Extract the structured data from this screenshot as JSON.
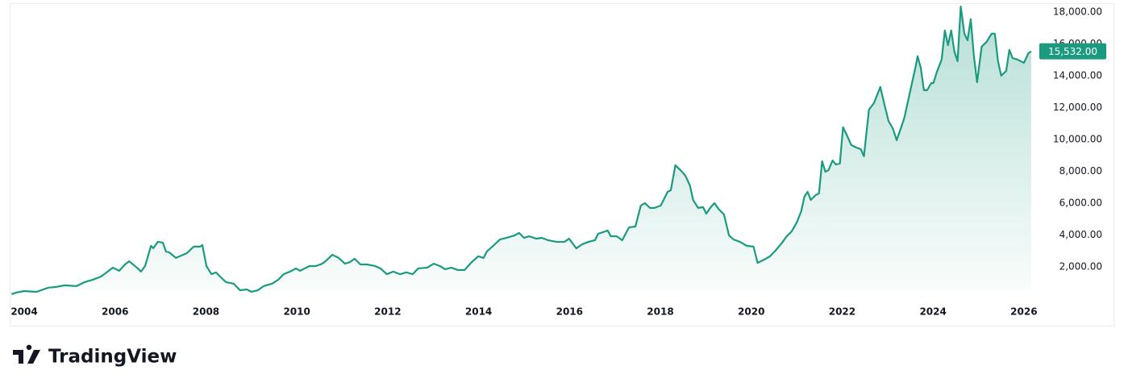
{
  "chart_data": {
    "type": "area",
    "color": "#1a9a7e",
    "grid": false,
    "xlim": [
      2003.68,
      2026.18
    ],
    "xticks": [
      2004,
      2006,
      2008,
      2010,
      2012,
      2014,
      2016,
      2018,
      2020,
      2022,
      2024,
      2026
    ],
    "ylim": [
      530,
      18500
    ],
    "yticks": [
      {
        "value": 2000,
        "label": "2,000.00"
      },
      {
        "value": 4000,
        "label": "4,000.00"
      },
      {
        "value": 6000,
        "label": "6,000.00"
      },
      {
        "value": 8000,
        "label": "8,000.00"
      },
      {
        "value": 10000,
        "label": "10,000.00"
      },
      {
        "value": 12000,
        "label": "12,000.00"
      },
      {
        "value": 14000,
        "label": "14,000.00"
      },
      {
        "value": 16000,
        "label": "16,000.00"
      },
      {
        "value": 18000,
        "label": "18,000.00"
      }
    ],
    "last_price": {
      "value": 15532,
      "label": "15,532.00"
    },
    "x": [
      2003.72,
      2003.82,
      2004.0,
      2004.27,
      2004.53,
      2004.71,
      2004.89,
      2005.15,
      2005.33,
      2005.51,
      2005.69,
      2005.86,
      2005.95,
      2006.09,
      2006.22,
      2006.31,
      2006.48,
      2006.57,
      2006.66,
      2006.79,
      2006.84,
      2006.94,
      2007.05,
      2007.12,
      2007.19,
      2007.34,
      2007.46,
      2007.58,
      2007.73,
      2007.87,
      2007.92,
      2008.01,
      2008.12,
      2008.22,
      2008.31,
      2008.44,
      2008.61,
      2008.75,
      2008.9,
      2009.0,
      2009.14,
      2009.27,
      2009.45,
      2009.59,
      2009.71,
      2009.85,
      2009.98,
      2010.07,
      2010.17,
      2010.28,
      2010.42,
      2010.56,
      2010.65,
      2010.78,
      2010.92,
      2011.06,
      2011.17,
      2011.27,
      2011.4,
      2011.54,
      2011.72,
      2011.84,
      2011.98,
      2012.12,
      2012.27,
      2012.41,
      2012.55,
      2012.67,
      2012.87,
      2013.01,
      2013.15,
      2013.26,
      2013.4,
      2013.54,
      2013.69,
      2013.85,
      2013.99,
      2014.11,
      2014.18,
      2014.32,
      2014.47,
      2014.61,
      2014.79,
      2014.89,
      2015.0,
      2015.11,
      2015.27,
      2015.39,
      2015.53,
      2015.71,
      2015.89,
      2015.99,
      2016.15,
      2016.28,
      2016.42,
      2016.56,
      2016.63,
      2016.74,
      2016.84,
      2016.91,
      2017.04,
      2017.16,
      2017.31,
      2017.45,
      2017.57,
      2017.66,
      2017.77,
      2017.87,
      2018.01,
      2018.16,
      2018.23,
      2018.33,
      2018.46,
      2018.55,
      2018.65,
      2018.72,
      2018.83,
      2018.94,
      2019.01,
      2019.11,
      2019.19,
      2019.29,
      2019.4,
      2019.51,
      2019.61,
      2019.75,
      2019.9,
      2020.05,
      2020.14,
      2020.29,
      2020.41,
      2020.53,
      2020.68,
      2020.78,
      2020.89,
      2021.0,
      2021.1,
      2021.17,
      2021.24,
      2021.31,
      2021.42,
      2021.49,
      2021.56,
      2021.63,
      2021.7,
      2021.79,
      2021.86,
      2021.95,
      2022.02,
      2022.09,
      2022.2,
      2022.31,
      2022.41,
      2022.48,
      2022.59,
      2022.7,
      2022.84,
      2022.95,
      2023.02,
      2023.12,
      2023.2,
      2023.3,
      2023.37,
      2023.51,
      2023.62,
      2023.66,
      2023.73,
      2023.8,
      2023.87,
      2023.96,
      2024.01,
      2024.08,
      2024.19,
      2024.26,
      2024.33,
      2024.4,
      2024.47,
      2024.54,
      2024.61,
      2024.69,
      2024.76,
      2024.83,
      2024.9,
      2024.97,
      2025.07,
      2025.18,
      2025.29,
      2025.36,
      2025.43,
      2025.5,
      2025.61,
      2025.68,
      2025.75,
      2025.86,
      2026.0,
      2026.1,
      2026.16
    ],
    "values": [
      280,
      380,
      480,
      430,
      690,
      740,
      840,
      790,
      1040,
      1190,
      1390,
      1750,
      1950,
      1750,
      2150,
      2350,
      1950,
      1700,
      2050,
      3320,
      3170,
      3570,
      3520,
      2960,
      2910,
      2560,
      2710,
      2860,
      3270,
      3270,
      3370,
      2050,
      1540,
      1650,
      1390,
      1040,
      940,
      530,
      580,
      430,
      530,
      790,
      940,
      1190,
      1540,
      1700,
      1900,
      1750,
      1900,
      2050,
      2050,
      2200,
      2400,
      2760,
      2560,
      2200,
      2300,
      2510,
      2150,
      2150,
      2050,
      1900,
      1540,
      1700,
      1540,
      1650,
      1540,
      1900,
      1950,
      2200,
      2050,
      1850,
      1950,
      1800,
      1800,
      2300,
      2660,
      2560,
      2960,
      3320,
      3720,
      3820,
      3970,
      4130,
      3820,
      3920,
      3770,
      3820,
      3670,
      3570,
      3570,
      3770,
      3160,
      3420,
      3570,
      3670,
      4080,
      4180,
      4280,
      3920,
      3920,
      3670,
      4480,
      4530,
      5850,
      6000,
      5700,
      5700,
      5850,
      6710,
      6810,
      8380,
      8020,
      7720,
      7110,
      6200,
      5700,
      5750,
      5340,
      5750,
      6000,
      5600,
      5290,
      3970,
      3720,
      3570,
      3320,
      3270,
      2250,
      2460,
      2660,
      3010,
      3520,
      3920,
      4230,
      4780,
      5490,
      6410,
      6710,
      6200,
      6510,
      6610,
      8630,
      7970,
      8070,
      8680,
      8430,
      8480,
      10760,
      10350,
      9650,
      9490,
      9390,
      8940,
      11870,
      12280,
      13290,
      11970,
      11160,
      10660,
      9950,
      10760,
      11370,
      13190,
      14610,
      15220,
      14510,
      13090,
      13090,
      13540,
      13540,
      14200,
      15010,
      16840,
      15920,
      16840,
      15520,
      14910,
      18350,
      16640,
      16230,
      17550,
      15220,
      13590,
      15820,
      16130,
      16640,
      16640,
      14910,
      14000,
      14300,
      15620,
      15110,
      15010,
      14810,
      15420,
      15532
    ]
  },
  "branding": "TradingView"
}
